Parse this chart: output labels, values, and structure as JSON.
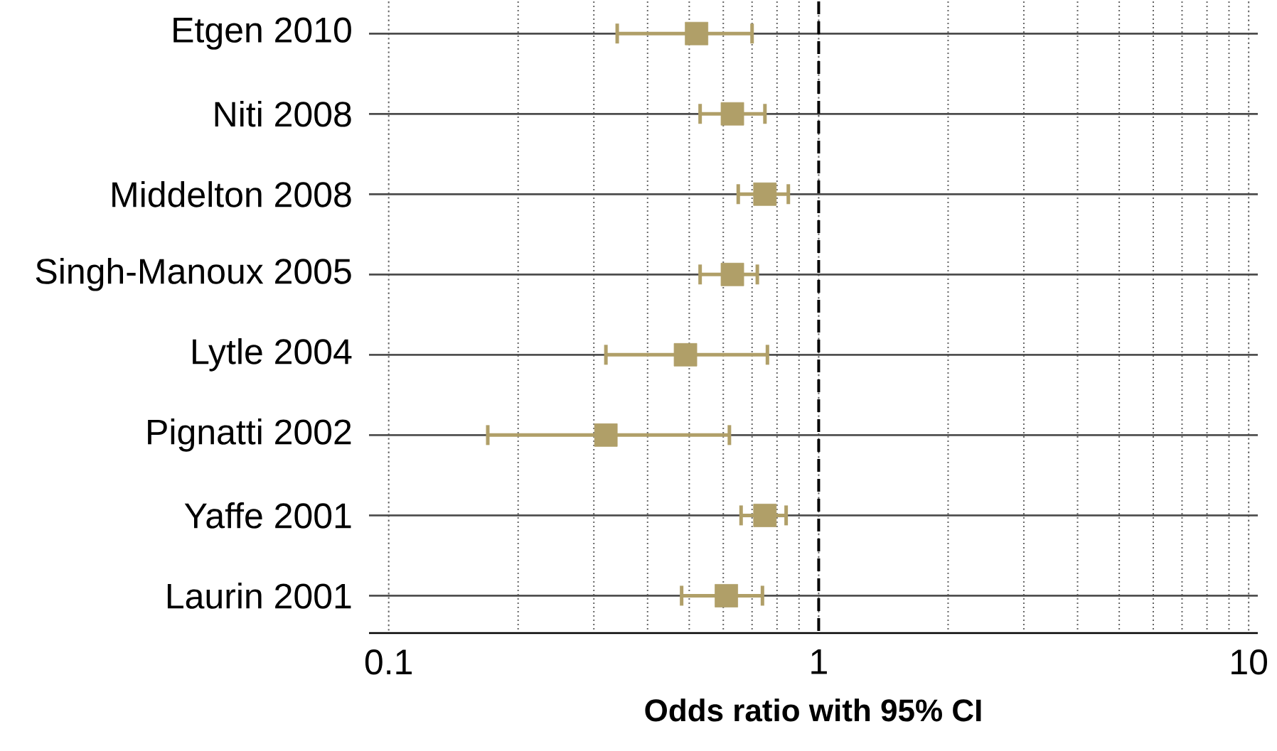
{
  "chart_data": {
    "type": "scatter",
    "orientation": "horizontal",
    "xlabel": "Odds ratio with 95% CI",
    "categories": [
      "Etgen 2010",
      "Niti 2008",
      "Middelton 2008",
      "Singh-Manoux 2005",
      "Lytle 2004",
      "Pignatti 2002",
      "Yaffe 2001",
      "Laurin 2001"
    ],
    "values": [
      0.52,
      0.63,
      0.75,
      0.63,
      0.49,
      0.32,
      0.75,
      0.61
    ],
    "errors": [
      [
        0.34,
        0.7
      ],
      [
        0.53,
        0.75
      ],
      [
        0.65,
        0.85
      ],
      [
        0.53,
        0.72
      ],
      [
        0.32,
        0.76
      ],
      [
        0.17,
        0.62
      ],
      [
        0.66,
        0.84
      ],
      [
        0.48,
        0.74
      ]
    ],
    "color": "#b09f68",
    "xlim": [
      0.09,
      10.5
    ],
    "xticks": [
      0.1,
      1,
      10
    ],
    "log": "x",
    "grid": true,
    "marker": "square",
    "ref_lines": [
      {
        "axis": "x",
        "value": 1,
        "color": "#000000",
        "line_style": "dashed"
      }
    ]
  }
}
